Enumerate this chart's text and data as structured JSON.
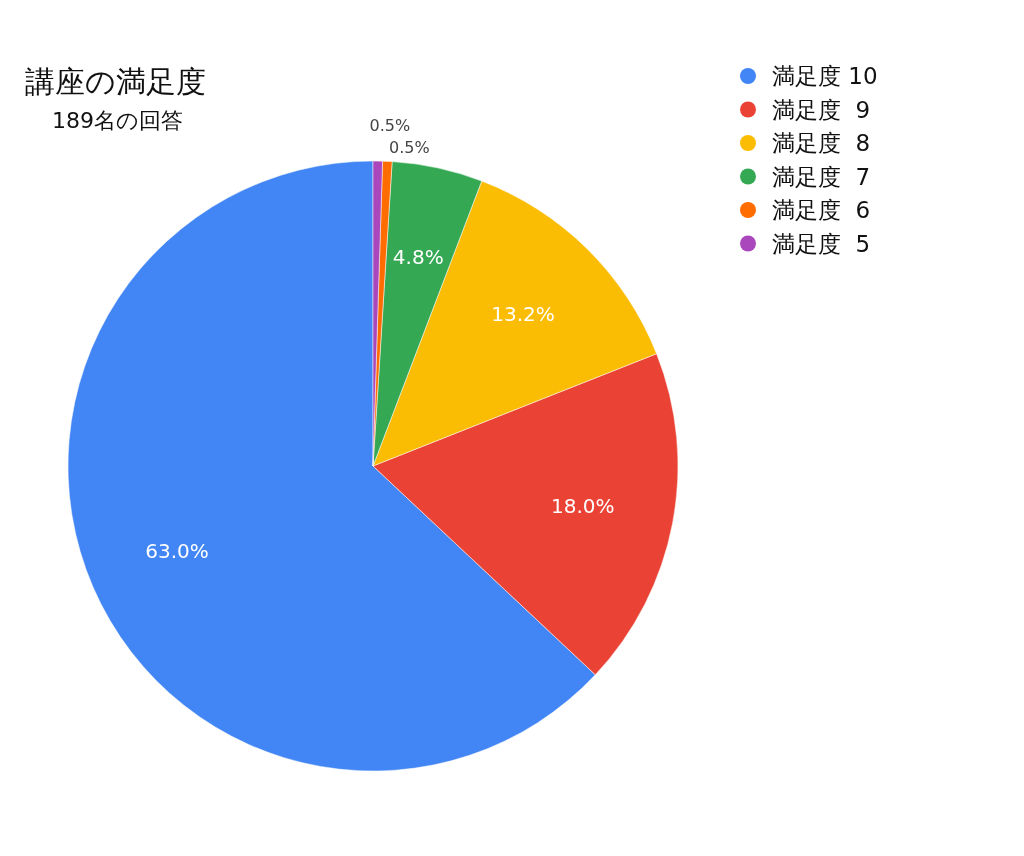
{
  "chart_data": {
    "type": "pie",
    "title": "講座の満足度",
    "subtitle": "189名の回答",
    "categories": [
      "満足度 10",
      "満足度  9",
      "満足度  8",
      "満足度  7",
      "満足度  6",
      "満足度  5"
    ],
    "values": [
      63.0,
      18.0,
      13.2,
      4.8,
      0.5,
      0.5
    ],
    "colors": [
      "#4285f4",
      "#ea4335",
      "#fbbc04",
      "#34a853",
      "#ff6d01",
      "#ab47bc"
    ],
    "value_labels": [
      "63.0%",
      "18.0%",
      "13.2%",
      "4.8%",
      "0.5%",
      "0.5%"
    ],
    "legend": "top right"
  }
}
